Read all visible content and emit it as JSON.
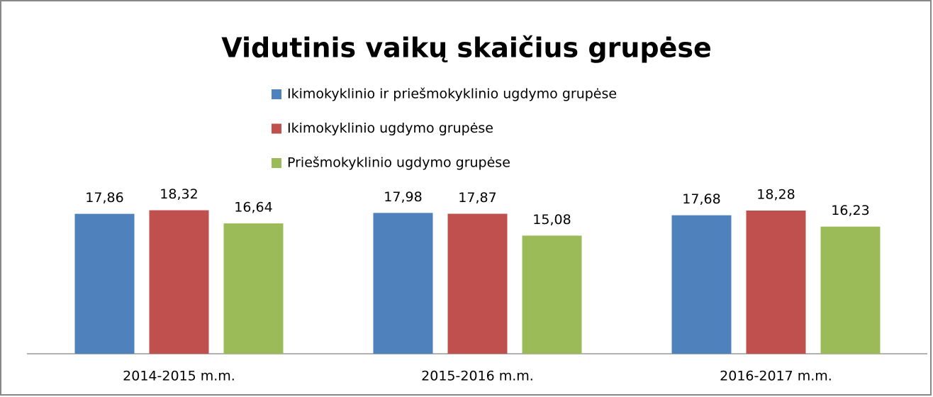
{
  "chart_data": {
    "type": "bar",
    "title": "Vidutinis vaikų skaičius grupėse",
    "categories": [
      "2014-2015 m.m.",
      "2015-2016 m.m.",
      "2016-2017 m.m."
    ],
    "series": [
      {
        "name": "Ikimokyklinio ir priešmokyklinio ugdymo grupėse",
        "color": "#4f81bd",
        "values": [
          17.86,
          17.98,
          17.68
        ],
        "value_labels": [
          "17,86",
          "17,98",
          "17,68"
        ]
      },
      {
        "name": "Ikimokyklinio ugdymo grupėse",
        "color": "#c0504d",
        "values": [
          18.32,
          17.87,
          18.28
        ],
        "value_labels": [
          "18,32",
          "17,87",
          "18,28"
        ]
      },
      {
        "name": "Priešmokyklinio ugdymo grupėse",
        "color": "#9bbb59",
        "values": [
          16.64,
          15.08,
          16.23
        ],
        "value_labels": [
          "16,64",
          "15,08",
          "16,23"
        ]
      }
    ],
    "ylim": [
      0,
      20
    ]
  }
}
